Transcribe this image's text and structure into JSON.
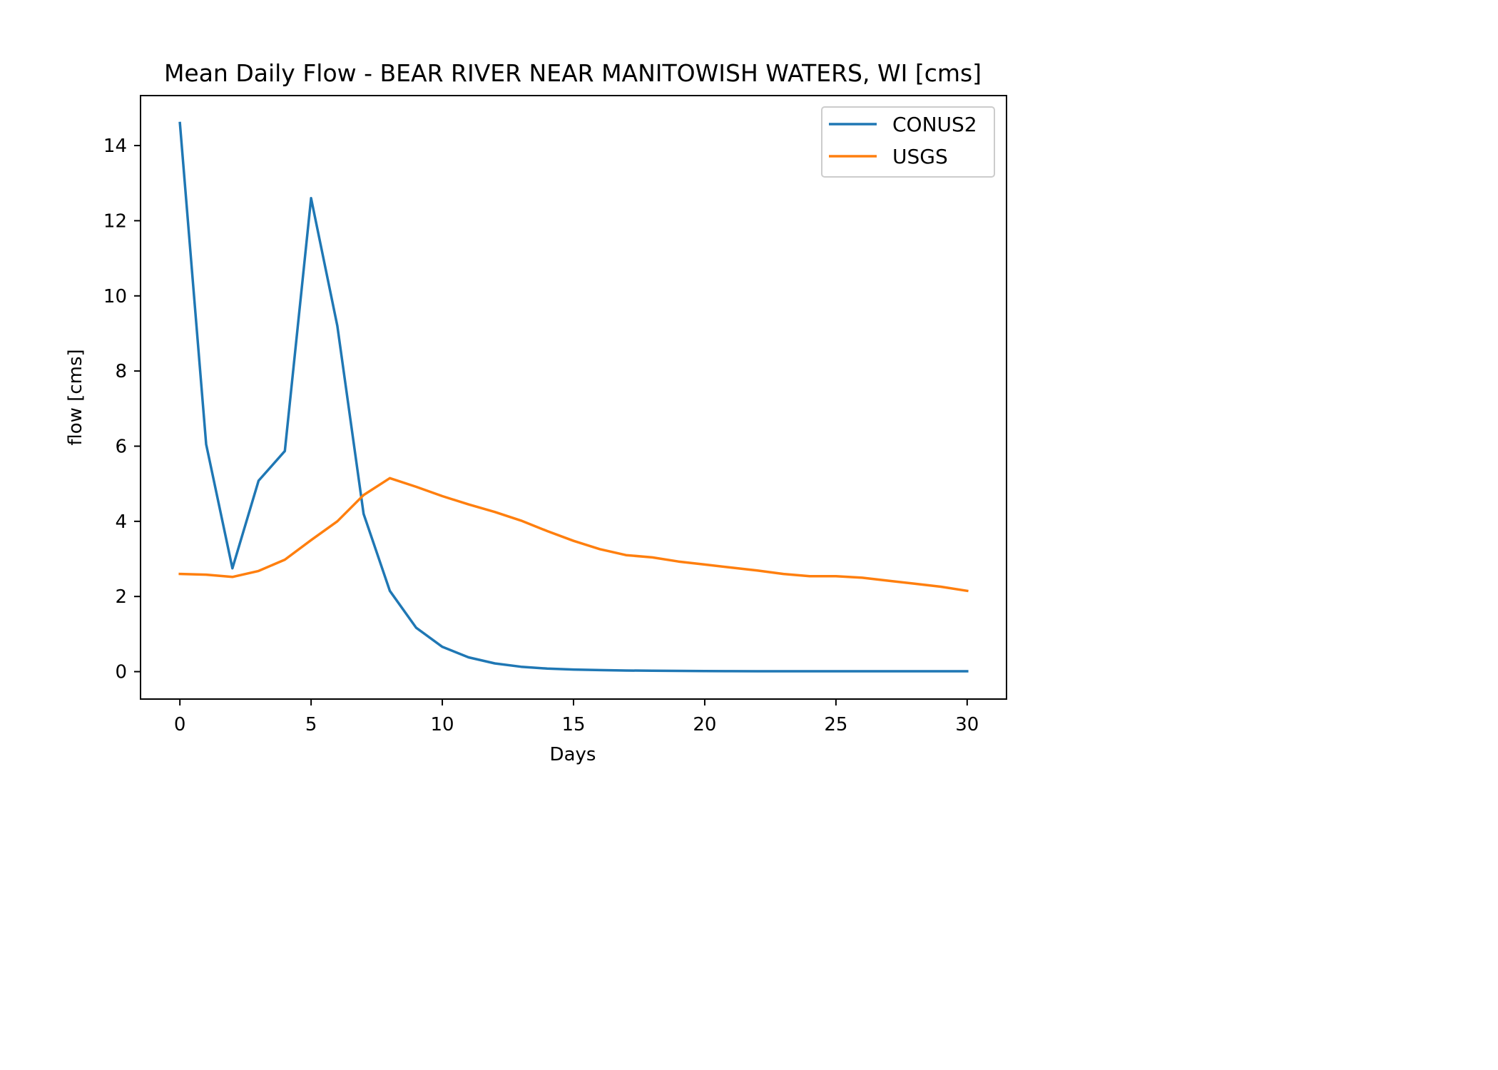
{
  "chart_data": {
    "type": "line",
    "title": "Mean Daily Flow - BEAR RIVER NEAR MANITOWISH WATERS, WI [cms]",
    "xlabel": "Days",
    "ylabel": "flow [cms]",
    "xlim": [
      -1.5,
      31.5
    ],
    "ylim": [
      -0.73,
      15.33
    ],
    "xticks": [
      0,
      5,
      10,
      15,
      20,
      25,
      30
    ],
    "yticks": [
      0,
      2,
      4,
      6,
      8,
      10,
      12,
      14
    ],
    "grid": false,
    "legend_position": "top-right",
    "x": [
      0,
      1,
      2,
      3,
      4,
      5,
      6,
      7,
      8,
      9,
      10,
      11,
      12,
      13,
      14,
      15,
      16,
      17,
      18,
      19,
      20,
      21,
      22,
      23,
      24,
      25,
      26,
      27,
      28,
      29,
      30
    ],
    "series": [
      {
        "name": "CONUS2",
        "color": "#1f77b4",
        "values": [
          14.6,
          6.05,
          2.75,
          5.08,
          5.87,
          12.6,
          9.2,
          4.2,
          2.15,
          1.17,
          0.66,
          0.38,
          0.22,
          0.13,
          0.08,
          0.055,
          0.04,
          0.03,
          0.025,
          0.02,
          0.015,
          0.012,
          0.01,
          0.01,
          0.01,
          0.01,
          0.01,
          0.01,
          0.01,
          0.01,
          0.01
        ]
      },
      {
        "name": "USGS",
        "color": "#ff7f0e",
        "values": [
          2.6,
          2.58,
          2.52,
          2.68,
          2.98,
          3.5,
          4.0,
          4.7,
          5.15,
          4.92,
          4.67,
          4.45,
          4.25,
          4.02,
          3.74,
          3.48,
          3.26,
          3.1,
          3.04,
          2.93,
          2.85,
          2.77,
          2.69,
          2.6,
          2.54,
          2.54,
          2.5,
          2.42,
          2.34,
          2.26,
          2.15
        ]
      }
    ]
  }
}
